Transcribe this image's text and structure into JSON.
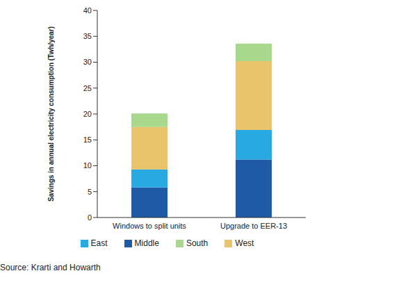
{
  "chart_data": {
    "type": "bar",
    "stacked": true,
    "orientation": "vertical",
    "ylabel": "Savings in annual electricity consumption (Twh/year)",
    "categories": [
      "Windows to split units",
      "Upgrade to EER-13"
    ],
    "series": [
      {
        "name": "Middle",
        "color": "#1f5aa6",
        "values": [
          5.8,
          11.2
        ]
      },
      {
        "name": "East",
        "color": "#29a9e1",
        "values": [
          3.5,
          5.7
        ]
      },
      {
        "name": "West",
        "color": "#e9c46a",
        "values": [
          8.2,
          13.3
        ]
      },
      {
        "name": "South",
        "color": "#a8d88c",
        "values": [
          2.6,
          3.4
        ]
      }
    ],
    "ylim": [
      0,
      40
    ],
    "yticks": [
      0,
      5,
      10,
      15,
      20,
      25,
      30,
      35,
      40
    ],
    "grid": false,
    "legend": "bottom",
    "annotation": "Source: Krarti and Howarth"
  }
}
